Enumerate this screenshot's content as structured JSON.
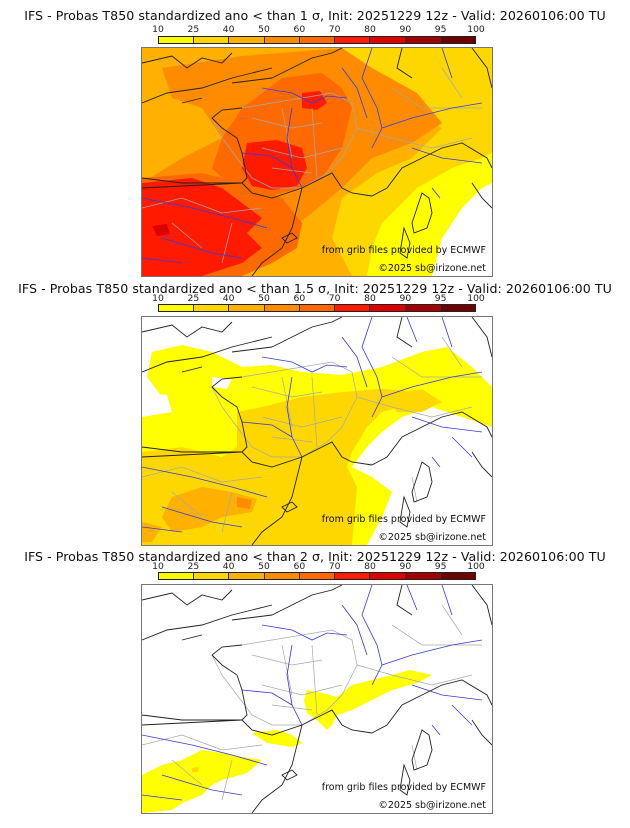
{
  "colorbar": {
    "ticks": [
      "10",
      "25",
      "40",
      "50",
      "60",
      "70",
      "80",
      "90",
      "95",
      "100"
    ],
    "colors": [
      "#ffff00",
      "#ffd700",
      "#ffb000",
      "#ff8c00",
      "#ff6a00",
      "#ff1a00",
      "#dd0000",
      "#a00000",
      "#6e0000"
    ]
  },
  "panels": [
    {
      "title": "IFS - Probas T850  standardized ano < than 1 σ, Init: 20251229 12z - Valid: 20260106:00 TU",
      "credit_source": "from grib files provided by ECMWF",
      "credit_copyright": "©2025 sb@irizone.net",
      "sigma": "1"
    },
    {
      "title": "IFS - Probas T850  standardized ano < than 1.5 σ, Init: 20251229 12z - Valid: 20260106:00 TU",
      "credit_source": "from grib files provided by ECMWF",
      "credit_copyright": "©2025 sb@irizone.net",
      "sigma": "1.5"
    },
    {
      "title": "IFS - Probas T850  standardized ano < than 2 σ, Init: 20251229 12z - Valid: 20260106:00 TU",
      "credit_source": "from grib files provided by ECMWF",
      "credit_copyright": "©2025 sb@irizone.net",
      "sigma": "2"
    }
  ],
  "map_colors": {
    "coast": "#222222",
    "rivers": "#3a3ad8",
    "borders": "#a8a8a8"
  }
}
